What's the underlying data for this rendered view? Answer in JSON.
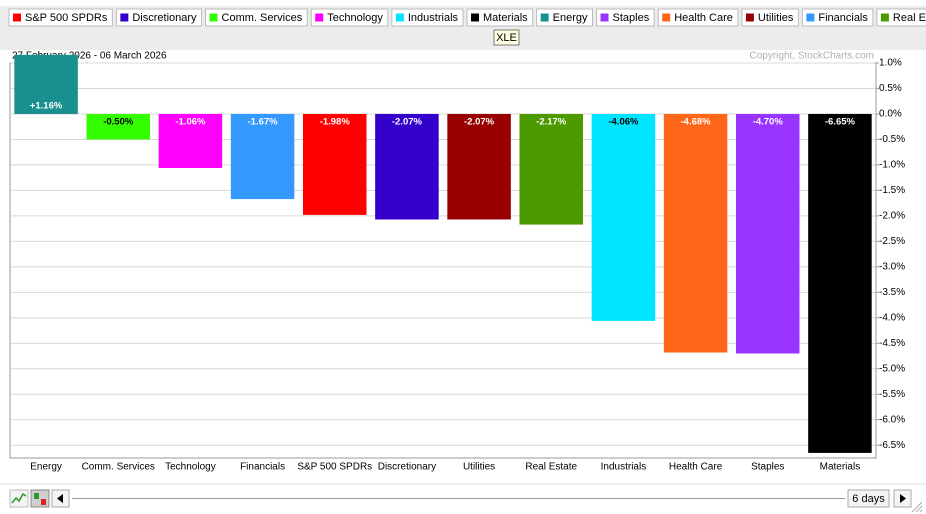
{
  "chart_data": {
    "type": "bar",
    "subtitle": "27 February 2026 - 06 March 2026",
    "annotation": "Copyright, StockCharts.com",
    "tooltip": "XLE",
    "legend": [
      {
        "name": "S&P 500 SPDRs",
        "color": "#ff0000"
      },
      {
        "name": "Discretionary",
        "color": "#3300cc"
      },
      {
        "name": "Comm. Services",
        "color": "#33ff00"
      },
      {
        "name": "Technology",
        "color": "#ff00ff"
      },
      {
        "name": "Industrials",
        "color": "#00e5ff"
      },
      {
        "name": "Materials",
        "color": "#000000"
      },
      {
        "name": "Energy",
        "color": "#1a8f8f"
      },
      {
        "name": "Staples",
        "color": "#9933ff"
      },
      {
        "name": "Health Care",
        "color": "#ff6619"
      },
      {
        "name": "Utilities",
        "color": "#990000"
      },
      {
        "name": "Financials",
        "color": "#3399ff"
      },
      {
        "name": "Real Estate",
        "color": "#4d9900"
      }
    ],
    "categories": [
      "Energy",
      "Comm. Services",
      "Technology",
      "Financials",
      "S&P 500 SPDRs",
      "Discretionary",
      "Utilities",
      "Real Estate",
      "Industrials",
      "Health Care",
      "Staples",
      "Materials"
    ],
    "values": [
      1.16,
      -0.5,
      -1.06,
      -1.67,
      -1.98,
      -2.07,
      -2.07,
      -2.17,
      -4.06,
      -4.68,
      -4.7,
      -6.65
    ],
    "value_labels": [
      "+1.16%",
      "-0.50%",
      "-1.06%",
      "-1.67%",
      "-1.98%",
      "-2.07%",
      "-2.07%",
      "-2.17%",
      "-4.06%",
      "-4.68%",
      "-4.70%",
      "-6.65%"
    ],
    "ylim": [
      -6.75,
      1.0
    ],
    "yticks": [
      {
        "value": 1.0,
        "label": "1.0%"
      },
      {
        "value": 0.5,
        "label": "0.5%"
      },
      {
        "value": 0.0,
        "label": "0.0%"
      },
      {
        "value": -0.5,
        "label": "-0.5%"
      },
      {
        "value": -1.0,
        "label": "-1.0%"
      },
      {
        "value": -1.5,
        "label": "-1.5%"
      },
      {
        "value": -2.0,
        "label": "-2.0%"
      },
      {
        "value": -2.5,
        "label": "-2.5%"
      },
      {
        "value": -3.0,
        "label": "-3.0%"
      },
      {
        "value": -3.5,
        "label": "-3.5%"
      },
      {
        "value": -4.0,
        "label": "-4.0%"
      },
      {
        "value": -4.5,
        "label": "-4.5%"
      },
      {
        "value": -5.0,
        "label": "-5.0%"
      },
      {
        "value": -5.5,
        "label": "-5.5%"
      },
      {
        "value": -6.0,
        "label": "-6.0%"
      },
      {
        "value": -6.5,
        "label": "-6.5%"
      }
    ],
    "grid": true
  },
  "toolbar": {
    "period": "6 days"
  }
}
